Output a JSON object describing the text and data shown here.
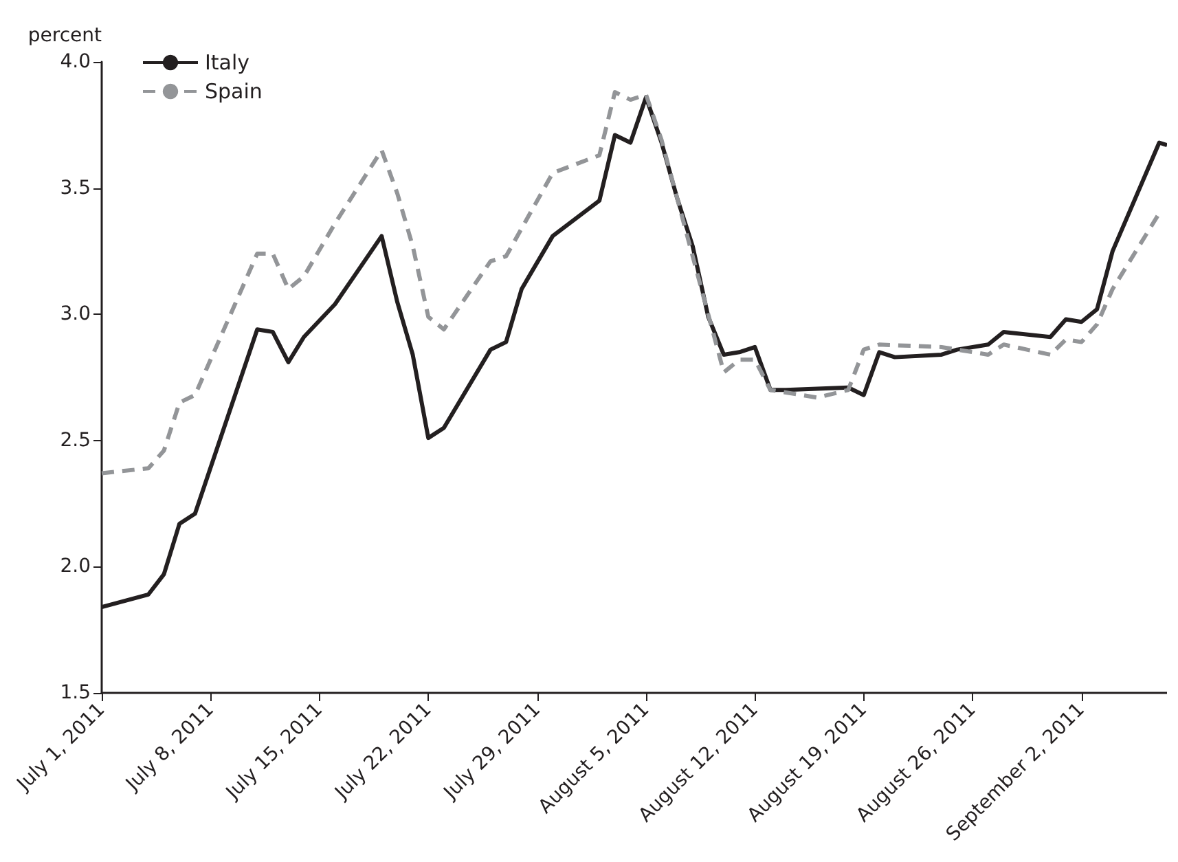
{
  "chart_data": {
    "type": "line",
    "ylabel": "percent",
    "legend": "top left",
    "grid": false,
    "marker": "none",
    "xlim": [
      "2011-07-01",
      "2011-09-07T12:00"
    ],
    "xticks": [
      {
        "value": "2011-07-01",
        "label": "July 1, 2011"
      },
      {
        "value": "2011-07-08",
        "label": "July 8, 2011"
      },
      {
        "value": "2011-07-15",
        "label": "July 15, 2011"
      },
      {
        "value": "2011-07-22",
        "label": "July 22, 2011"
      },
      {
        "value": "2011-07-29",
        "label": "July 29, 2011"
      },
      {
        "value": "2011-08-05",
        "label": "August 5, 2011"
      },
      {
        "value": "2011-08-12",
        "label": "August 12, 2011"
      },
      {
        "value": "2011-08-19",
        "label": "August 19, 2011"
      },
      {
        "value": "2011-08-26",
        "label": "August 26, 2011"
      },
      {
        "value": "2011-09-02",
        "label": "September 2, 2011"
      }
    ],
    "ylim": [
      1.5,
      4.0
    ],
    "yticks": [
      {
        "value": 1.5,
        "label": "1.5"
      },
      {
        "value": 2.0,
        "label": "2.0"
      },
      {
        "value": 2.5,
        "label": "2.5"
      },
      {
        "value": 3.0,
        "label": "3.0"
      },
      {
        "value": 3.5,
        "label": "3.5"
      },
      {
        "value": 4.0,
        "label": "4.0"
      }
    ],
    "series": [
      {
        "name": "Italy",
        "color": "#231f20",
        "line_style": "solid",
        "x": [
          "2011-07-01",
          "2011-07-04",
          "2011-07-05",
          "2011-07-06",
          "2011-07-07",
          "2011-07-11",
          "2011-07-12",
          "2011-07-13",
          "2011-07-14",
          "2011-07-16",
          "2011-07-19",
          "2011-07-20",
          "2011-07-21",
          "2011-07-22",
          "2011-07-23",
          "2011-07-26",
          "2011-07-27",
          "2011-07-28",
          "2011-07-30",
          "2011-08-02",
          "2011-08-03",
          "2011-08-04",
          "2011-08-05",
          "2011-08-06",
          "2011-08-07",
          "2011-08-08",
          "2011-08-09",
          "2011-08-10",
          "2011-08-11",
          "2011-08-12",
          "2011-08-13",
          "2011-08-14",
          "2011-08-18",
          "2011-08-19",
          "2011-08-20",
          "2011-08-21",
          "2011-08-24",
          "2011-08-25",
          "2011-08-27",
          "2011-08-28",
          "2011-08-31",
          "2011-09-01",
          "2011-09-02",
          "2011-09-03",
          "2011-09-04",
          "2011-09-07",
          "2011-09-07T12:00"
        ],
        "values": [
          1.84,
          1.89,
          1.97,
          2.17,
          2.21,
          2.94,
          2.93,
          2.81,
          2.91,
          3.04,
          3.31,
          3.05,
          2.84,
          2.51,
          2.55,
          2.86,
          2.89,
          3.1,
          3.31,
          3.45,
          3.71,
          3.68,
          3.86,
          3.68,
          3.46,
          3.27,
          2.99,
          2.84,
          2.85,
          2.87,
          2.7,
          2.7,
          2.71,
          2.68,
          2.85,
          2.83,
          2.84,
          2.86,
          2.88,
          2.93,
          2.91,
          2.98,
          2.97,
          3.02,
          3.25,
          3.68,
          3.67
        ]
      },
      {
        "name": "Spain",
        "color": "#939598",
        "line_style": "dashed",
        "x": [
          "2011-07-01",
          "2011-07-04",
          "2011-07-05",
          "2011-07-06",
          "2011-07-07",
          "2011-07-11",
          "2011-07-12",
          "2011-07-13",
          "2011-07-14",
          "2011-07-16",
          "2011-07-19",
          "2011-07-20",
          "2011-07-21",
          "2011-07-22",
          "2011-07-23",
          "2011-07-26",
          "2011-07-27",
          "2011-07-30",
          "2011-08-02",
          "2011-08-03",
          "2011-08-04",
          "2011-08-05",
          "2011-08-06",
          "2011-08-07",
          "2011-08-08",
          "2011-08-09",
          "2011-08-10",
          "2011-08-11",
          "2011-08-12",
          "2011-08-13",
          "2011-08-14",
          "2011-08-16",
          "2011-08-18",
          "2011-08-19",
          "2011-08-20",
          "2011-08-24",
          "2011-08-27",
          "2011-08-28",
          "2011-08-31",
          "2011-09-01",
          "2011-09-02",
          "2011-09-03",
          "2011-09-04",
          "2011-09-07"
        ],
        "values": [
          2.37,
          2.39,
          2.46,
          2.65,
          2.68,
          3.24,
          3.24,
          3.1,
          3.15,
          3.36,
          3.65,
          3.48,
          3.27,
          2.99,
          2.94,
          3.21,
          3.23,
          3.56,
          3.63,
          3.88,
          3.85,
          3.87,
          3.69,
          3.46,
          3.23,
          3.0,
          2.77,
          2.82,
          2.82,
          2.7,
          2.69,
          2.67,
          2.7,
          2.86,
          2.88,
          2.87,
          2.84,
          2.88,
          2.84,
          2.9,
          2.89,
          2.96,
          3.1,
          3.4
        ]
      }
    ]
  }
}
